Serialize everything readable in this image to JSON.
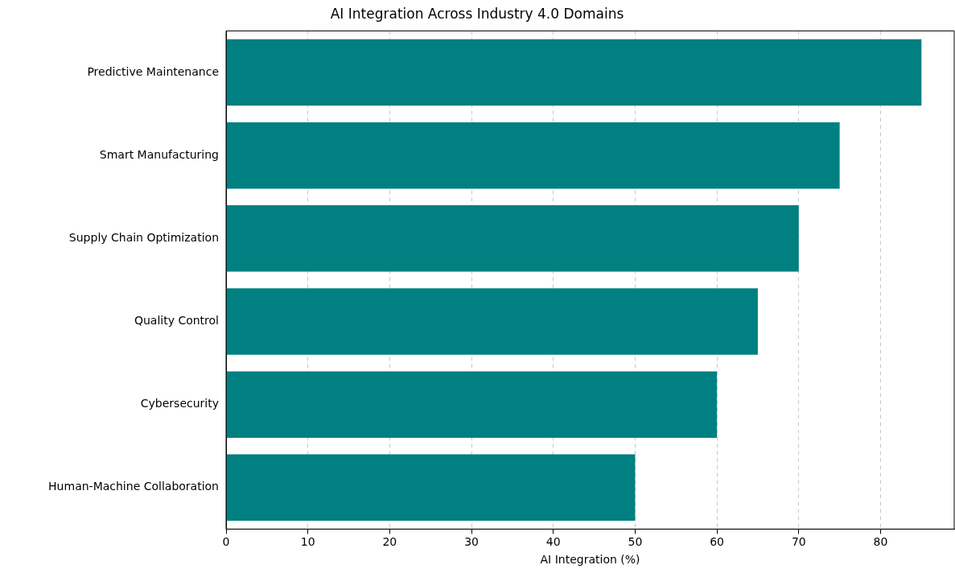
{
  "chart_data": {
    "type": "bar",
    "orientation": "horizontal",
    "title": "AI Integration Across Industry 4.0 Domains",
    "xlabel": "AI Integration (%)",
    "categories": [
      "Predictive Maintenance",
      "Smart Manufacturing",
      "Supply Chain Optimization",
      "Quality Control",
      "Cybersecurity",
      "Human-Machine Collaboration"
    ],
    "values": [
      85,
      75,
      70,
      65,
      60,
      50
    ],
    "color": "#008080",
    "xlim": [
      0,
      89
    ],
    "xticks": [
      0,
      10,
      20,
      30,
      40,
      50,
      60,
      70,
      80
    ],
    "grid": "x",
    "legend": false
  }
}
